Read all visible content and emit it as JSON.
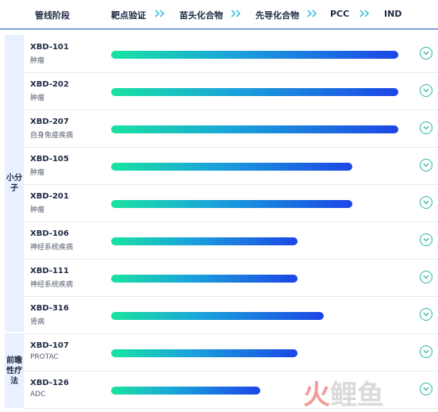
{
  "header": {
    "col_pipeline": "管线阶段",
    "stages": [
      "靶点验证",
      "苗头化合物",
      "先导化合物",
      "PCC",
      "IND"
    ]
  },
  "categories": [
    {
      "label": "小分子"
    },
    {
      "label": "前瞻性疗法"
    }
  ],
  "rows": [
    {
      "code": "XBD-101",
      "indication": "肿瘤",
      "progress": 1.0
    },
    {
      "code": "XBD-202",
      "indication": "肿瘤",
      "progress": 1.0
    },
    {
      "code": "XBD-207",
      "indication": "自身免疫疾病",
      "progress": 1.0
    },
    {
      "code": "XBD-105",
      "indication": "肿瘤",
      "progress": 0.84
    },
    {
      "code": "XBD-201",
      "indication": "肿瘤",
      "progress": 0.84
    },
    {
      "code": "XBD-106",
      "indication": "神经系统疾病",
      "progress": 0.65
    },
    {
      "code": "XBD-111",
      "indication": "神经系统疾病",
      "progress": 0.65
    },
    {
      "code": "XBD-316",
      "indication": "肾病",
      "progress": 0.74
    },
    {
      "code": "XBD-107",
      "indication": "PROTAC",
      "progress": 0.65
    },
    {
      "code": "XBD-126",
      "indication": "ADC",
      "progress": 0.52
    }
  ],
  "watermark": {
    "part1": "火",
    "part2": "鲤鱼"
  },
  "colors": {
    "accent": "#1f4fbf",
    "bar_start": "#19e3a0",
    "bar_end": "#1c46e6",
    "category_bg": "#e9f0ff",
    "expand": "#2bb6a8"
  }
}
